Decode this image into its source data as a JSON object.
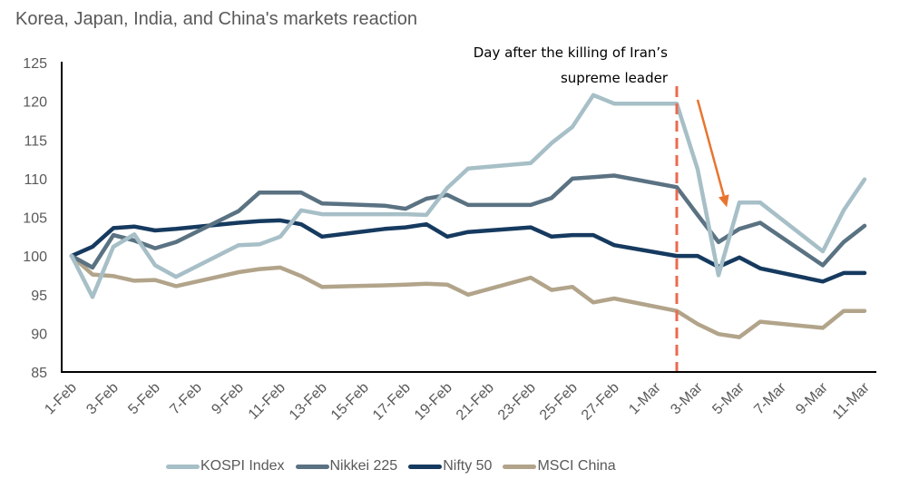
{
  "chart_data": {
    "type": "line",
    "title": "Korea, Japan, India, and China's markets reaction",
    "xlabel": "",
    "ylabel": "",
    "ylim": [
      85,
      125
    ],
    "yticks": [
      85,
      90,
      95,
      100,
      105,
      110,
      115,
      120,
      125
    ],
    "grid": false,
    "x_axis": {
      "type": "date",
      "start": "1-Feb",
      "end": "11-Mar",
      "tick_labels": [
        "1-Feb",
        "3-Feb",
        "5-Feb",
        "7-Feb",
        "9-Feb",
        "11-Feb",
        "13-Feb",
        "15-Feb",
        "17-Feb",
        "19-Feb",
        "21-Feb",
        "23-Feb",
        "25-Feb",
        "27-Feb",
        "1-Mar",
        "3-Mar",
        "5-Mar",
        "7-Mar",
        "9-Mar",
        "11-Mar"
      ],
      "tick_day_index": [
        0,
        2,
        4,
        6,
        8,
        10,
        12,
        14,
        16,
        18,
        20,
        22,
        24,
        26,
        28,
        30,
        32,
        34,
        36,
        38
      ]
    },
    "x": [
      "1-Feb",
      "2-Feb",
      "3-Feb",
      "4-Feb",
      "5-Feb",
      "6-Feb",
      "9-Feb",
      "10-Feb",
      "11-Feb",
      "12-Feb",
      "13-Feb",
      "16-Feb",
      "17-Feb",
      "18-Feb",
      "19-Feb",
      "20-Feb",
      "23-Feb",
      "24-Feb",
      "25-Feb",
      "26-Feb",
      "27-Feb",
      "2-Mar",
      "3-Mar",
      "4-Mar",
      "5-Mar",
      "6-Mar",
      "9-Mar",
      "10-Mar",
      "11-Mar"
    ],
    "x_day_index": [
      0,
      1,
      2,
      3,
      4,
      5,
      8,
      9,
      10,
      11,
      12,
      15,
      16,
      17,
      18,
      19,
      22,
      23,
      24,
      25,
      26,
      29,
      30,
      31,
      32,
      33,
      36,
      37,
      38
    ],
    "series": [
      {
        "name": "KOSPI Index",
        "color": "#A7BFC7",
        "values": [
          100,
          94.7,
          101.2,
          102.8,
          98.8,
          97.3,
          101.4,
          101.5,
          102.5,
          105.9,
          105.4,
          105.4,
          105.4,
          105.3,
          108.8,
          111.3,
          112.0,
          114.6,
          116.7,
          120.8,
          119.7,
          119.7,
          111.2,
          97.5,
          106.9,
          106.9,
          100.6,
          105.9,
          109.9
        ]
      },
      {
        "name": "Nikkei 225",
        "color": "#5A7282",
        "values": [
          100,
          98.5,
          102.7,
          102.0,
          101.0,
          101.8,
          105.8,
          108.2,
          108.2,
          108.2,
          106.8,
          106.5,
          106.1,
          107.4,
          107.9,
          106.6,
          106.6,
          107.5,
          110.0,
          110.2,
          110.4,
          108.9,
          105.3,
          101.8,
          103.5,
          104.3,
          98.8,
          101.8,
          103.9
        ]
      },
      {
        "name": "Nifty 50",
        "color": "#163A5F",
        "values": [
          100,
          101.2,
          103.6,
          103.8,
          103.3,
          103.5,
          104.3,
          104.5,
          104.6,
          104.1,
          102.5,
          103.5,
          103.7,
          104.1,
          102.5,
          103.1,
          103.7,
          102.5,
          102.7,
          102.7,
          101.4,
          100.0,
          100.0,
          98.6,
          99.8,
          98.4,
          96.7,
          97.8,
          97.8
        ]
      },
      {
        "name": "MSCI China",
        "color": "#B2A48A",
        "values": [
          100,
          97.6,
          97.4,
          96.8,
          96.9,
          96.1,
          97.9,
          98.3,
          98.5,
          97.4,
          96.0,
          96.2,
          96.3,
          96.4,
          96.3,
          95.0,
          97.2,
          95.6,
          96.0,
          94.0,
          94.5,
          92.9,
          91.2,
          89.9,
          89.5,
          91.5,
          90.7,
          92.9,
          92.9
        ]
      }
    ],
    "annotations": [
      {
        "type": "vertical-dashed-line",
        "at": "2-Mar",
        "day_index": 29,
        "color": "#EB6A4E",
        "text_lines": [
          "Day after the killing of Iran’s",
          "supreme leader"
        ]
      },
      {
        "type": "arrow",
        "from_day_index": 30,
        "from_value": 120.2,
        "to_day_index": 31.4,
        "to_value": 106.3,
        "color": "#E8752F"
      }
    ],
    "legend": {
      "placement": "bottom",
      "entries": [
        "KOSPI Index",
        "Nikkei 225",
        "Nifty 50",
        "MSCI China"
      ]
    }
  }
}
